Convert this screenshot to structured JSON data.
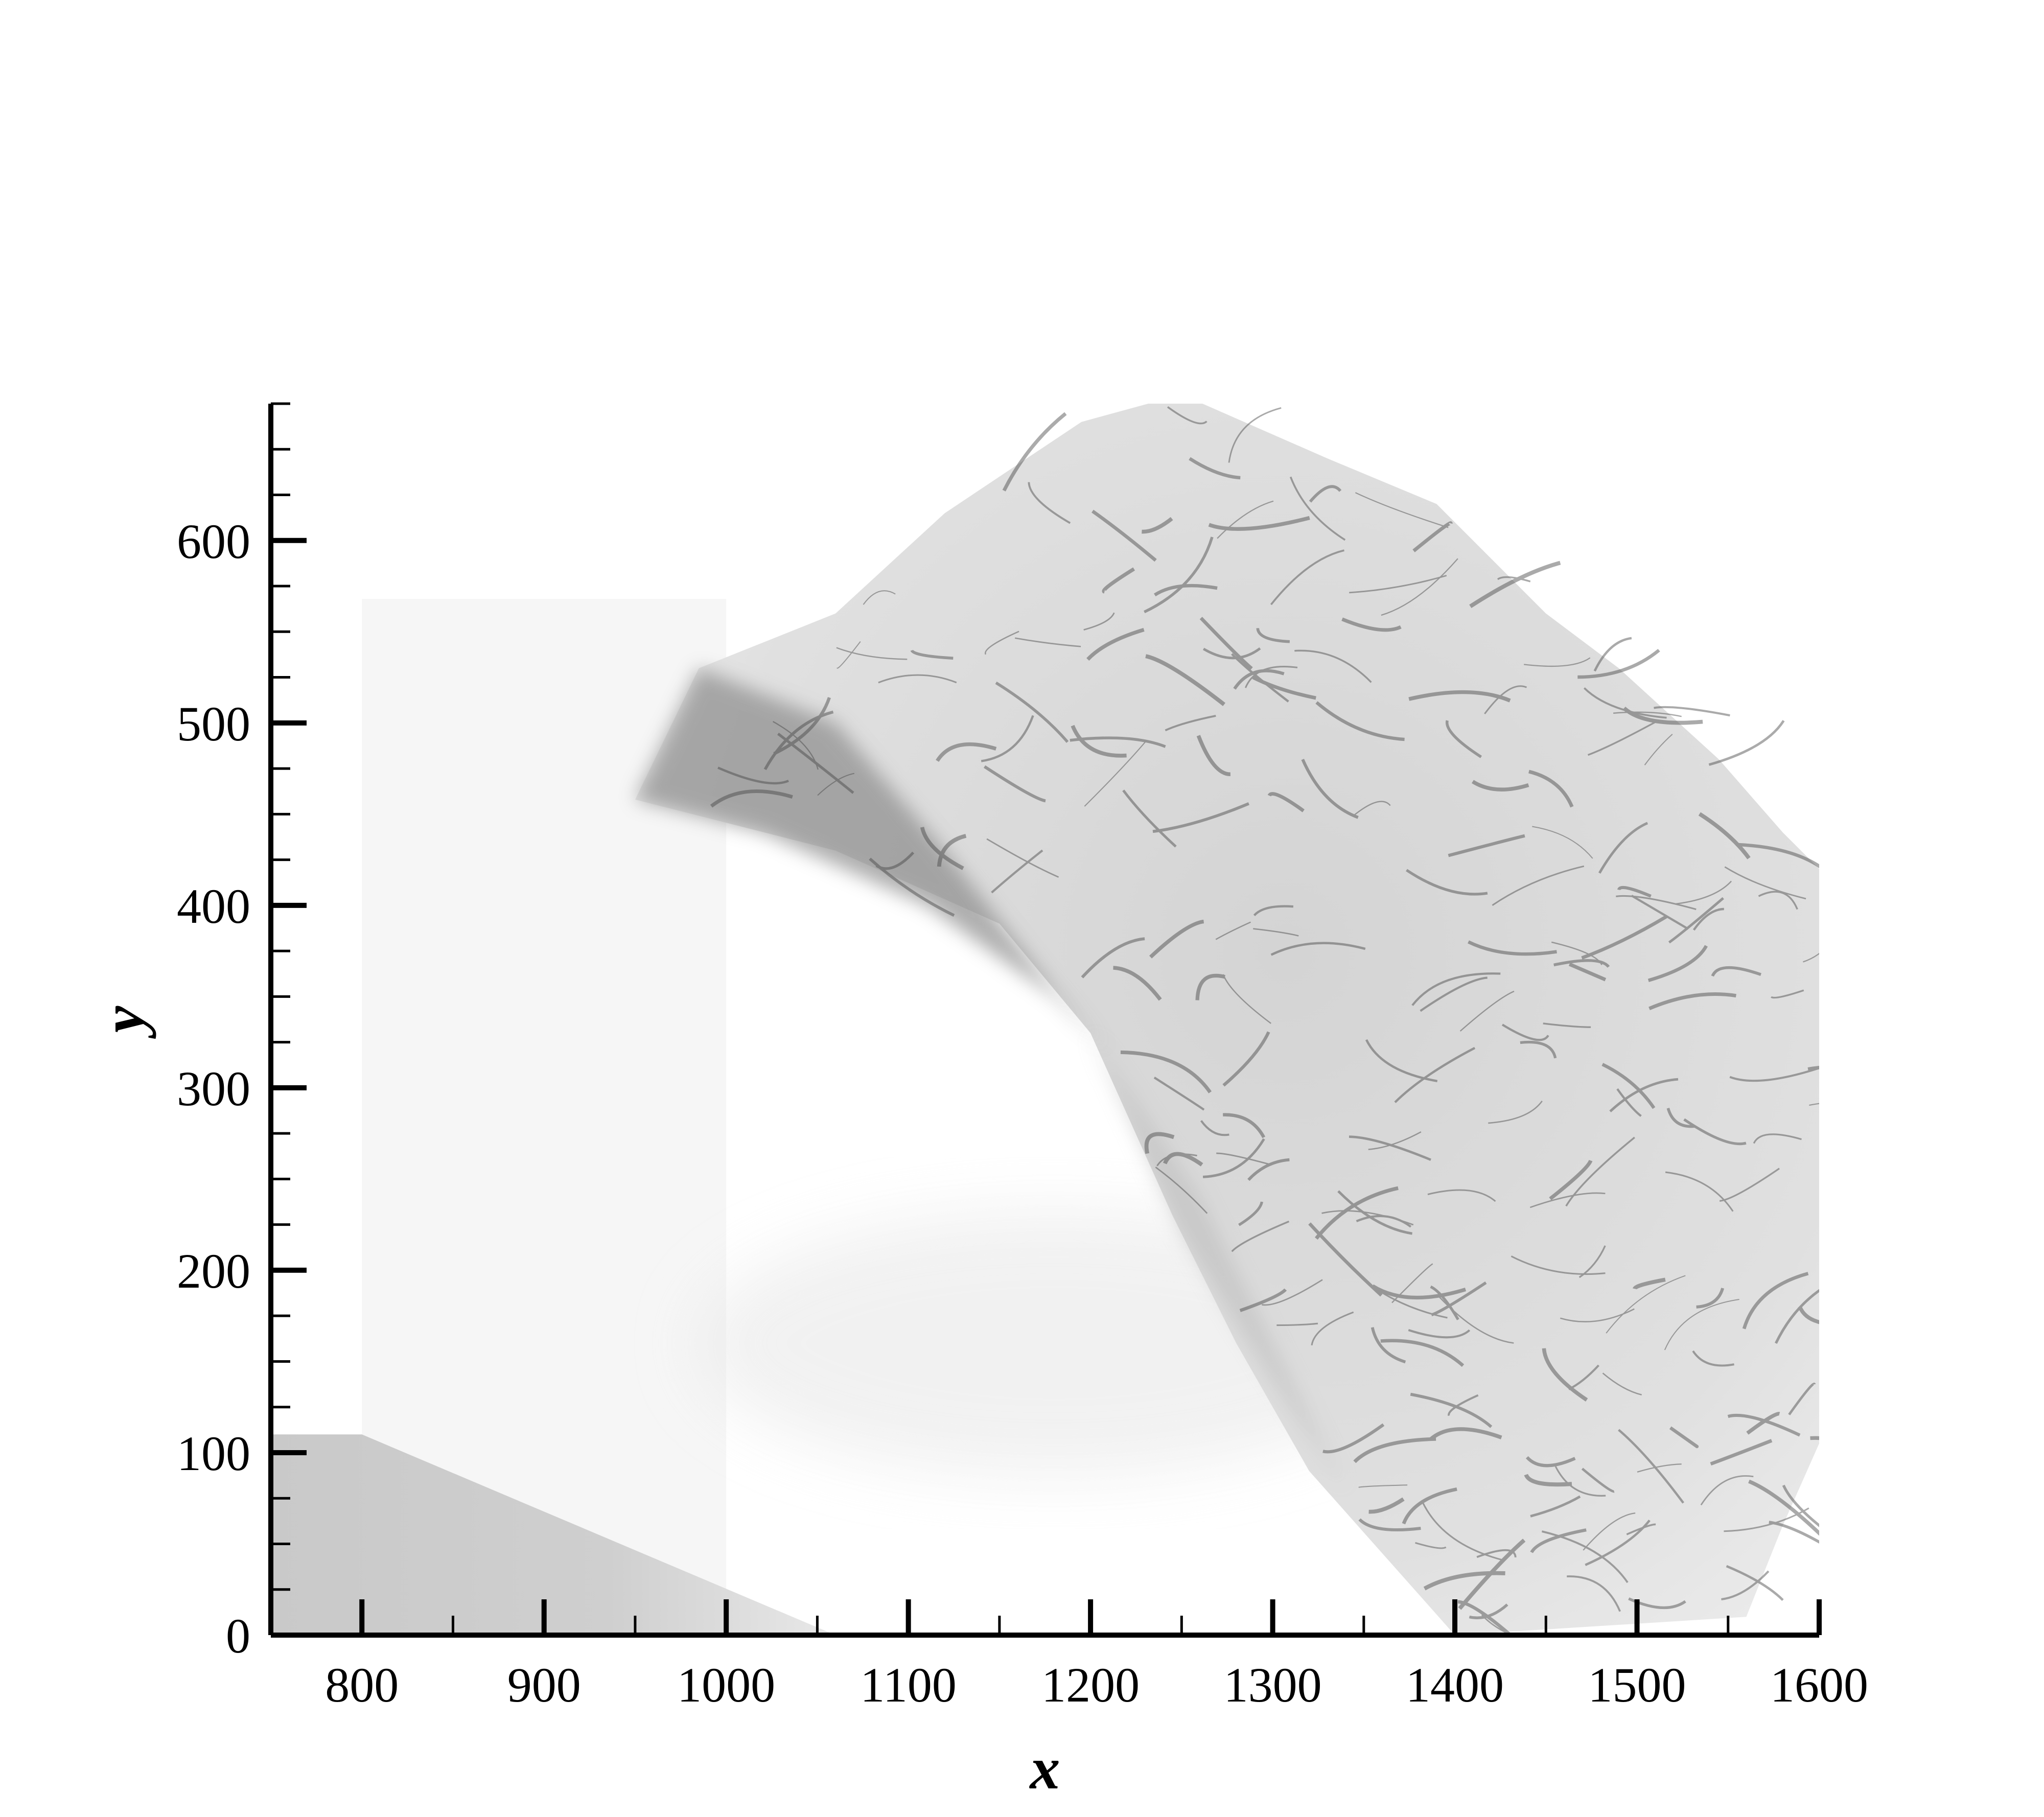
{
  "chart_data": {
    "type": "heatmap",
    "colormap": "grayscale numerical schlieren (white = low gradient, black = high gradient)",
    "xlabel": "x",
    "ylabel": "y",
    "xlim": [
      750,
      1600
    ],
    "ylim": [
      0,
      675
    ],
    "x_ticks": [
      800,
      900,
      1000,
      1100,
      1200,
      1300,
      1400,
      1500,
      1600
    ],
    "y_ticks": [
      0,
      100,
      200,
      300,
      400,
      500,
      600
    ],
    "x_tick_labels": [
      "800",
      "900",
      "1000",
      "1100",
      "1200",
      "1300",
      "1400",
      "1500",
      "1600"
    ],
    "y_tick_labels": [
      "0",
      "100",
      "200",
      "300",
      "400",
      "500",
      "600"
    ],
    "x_minor_step": 50,
    "y_minor_step": 25,
    "features": {
      "inert_region": {
        "x": [
          800,
          1000
        ],
        "y": [
          0,
          568
        ]
      },
      "gray_corner_wedge": {
        "polygon": [
          [
            750,
            0
          ],
          [
            750,
            110
          ],
          [
            800,
            110
          ],
          [
            1060,
            0
          ]
        ]
      },
      "detonation_front_boundary": [
        [
          950,
          458
        ],
        [
          985,
          530
        ],
        [
          1060,
          560
        ],
        [
          1120,
          615
        ],
        [
          1195,
          665
        ],
        [
          1250,
          680
        ],
        [
          1330,
          645
        ],
        [
          1390,
          620
        ],
        [
          1450,
          560
        ],
        [
          1490,
          530
        ],
        [
          1545,
          480
        ],
        [
          1580,
          440
        ],
        [
          1600,
          420
        ],
        [
          1600,
          105
        ],
        [
          1580,
          60
        ],
        [
          1560,
          10
        ],
        [
          1400,
          0
        ],
        [
          1320,
          90
        ],
        [
          1280,
          160
        ],
        [
          1245,
          230
        ],
        [
          1200,
          330
        ],
        [
          1150,
          390
        ],
        [
          1060,
          430
        ],
        [
          950,
          458
        ]
      ],
      "dark_cell_band": [
        [
          950,
          458
        ],
        [
          985,
          530
        ],
        [
          1060,
          500
        ],
        [
          1120,
          430
        ],
        [
          1175,
          360
        ],
        [
          1210,
          320
        ],
        [
          1180,
          350
        ],
        [
          1110,
          400
        ],
        [
          1020,
          440
        ]
      ]
    }
  }
}
